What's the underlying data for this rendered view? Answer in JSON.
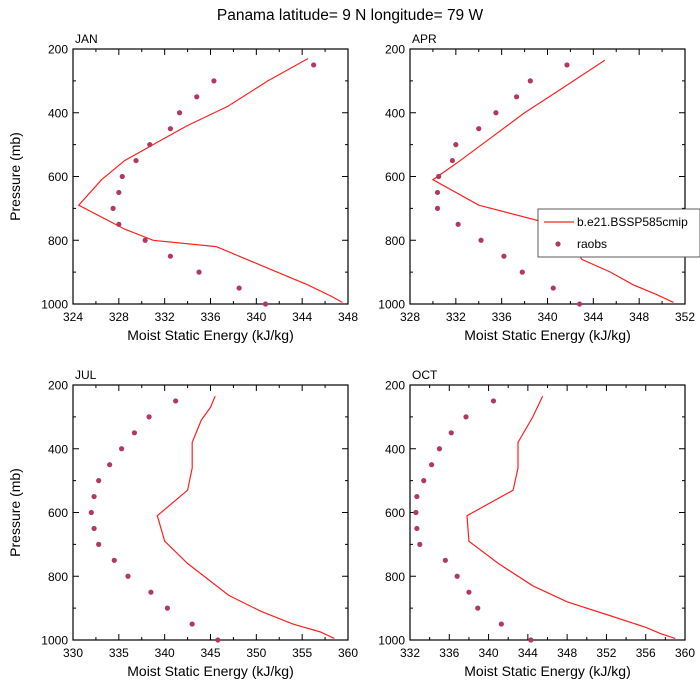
{
  "page": {
    "title": "Panama  latitude= 9 N longitude= 79 W"
  },
  "colors": {
    "model_line": "#ff2020",
    "obs_marker": "#b03a5b",
    "axis": "#000000"
  },
  "legend": {
    "model_label": "b.e21.BSSP585cmip",
    "obs_label": "raobs",
    "placement": "inside APR panel, right edge, near 700-860 mb"
  },
  "chart_data": [
    {
      "type": "line",
      "panel": "JAN",
      "title": "JAN",
      "xlabel": "Moist Static Energy (kJ/kg)",
      "ylabel": "Pressure (mb)",
      "xlim": [
        324,
        348
      ],
      "xticks": [
        324,
        328,
        332,
        336,
        340,
        344,
        348
      ],
      "ylim": [
        200,
        1000
      ],
      "yticks": [
        200,
        400,
        600,
        800,
        1000
      ],
      "y_inverted": true,
      "series": [
        {
          "name": "b.e21.BSSP585cmip",
          "kind": "line",
          "x": [
            347.5,
            346.5,
            344.5,
            340.5,
            336.5,
            331.0,
            328.5,
            324.5,
            326.5,
            328.5,
            331.5,
            334.0,
            337.5,
            341.0,
            344.5
          ],
          "y": [
            995,
            975,
            940,
            880,
            820,
            800,
            765,
            690,
            610,
            550,
            490,
            440,
            380,
            300,
            230
          ]
        },
        {
          "name": "raobs",
          "kind": "scatter",
          "x": [
            340.8,
            338.5,
            335.0,
            332.5,
            330.3,
            328.0,
            327.5,
            328.0,
            328.3,
            329.5,
            330.7,
            332.5,
            333.3,
            334.8,
            336.3,
            345.0
          ],
          "y": [
            1000,
            950,
            900,
            850,
            800,
            750,
            700,
            650,
            600,
            550,
            500,
            450,
            400,
            350,
            300,
            250
          ]
        }
      ]
    },
    {
      "type": "line",
      "panel": "APR",
      "title": "APR",
      "xlabel": "Moist Static Energy (kJ/kg)",
      "ylabel": "",
      "xlim": [
        328,
        352
      ],
      "xticks": [
        328,
        332,
        336,
        340,
        344,
        348,
        352
      ],
      "ylim": [
        200,
        1000
      ],
      "yticks": [
        200,
        400,
        600,
        800,
        1000
      ],
      "y_inverted": true,
      "series": [
        {
          "name": "b.e21.BSSP585cmip",
          "kind": "line",
          "x": [
            351.0,
            349.5,
            347.5,
            345.5,
            343.0,
            342.0,
            341.5,
            334.0,
            330.0,
            332.0,
            335.0,
            338.0,
            341.0,
            345.0
          ],
          "y": [
            995,
            970,
            940,
            900,
            860,
            800,
            760,
            690,
            610,
            560,
            480,
            400,
            330,
            235
          ]
        },
        {
          "name": "raobs",
          "kind": "scatter",
          "x": [
            342.8,
            340.5,
            337.8,
            336.2,
            334.2,
            332.2,
            330.4,
            330.4,
            330.5,
            331.7,
            332.0,
            334.0,
            335.5,
            337.3,
            338.5,
            341.7
          ],
          "y": [
            1000,
            950,
            900,
            850,
            800,
            750,
            700,
            650,
            600,
            550,
            500,
            450,
            400,
            350,
            300,
            250
          ]
        }
      ]
    },
    {
      "type": "line",
      "panel": "JUL",
      "title": "JUL",
      "xlabel": "Moist Static Energy (kJ/kg)",
      "ylabel": "Pressure (mb)",
      "xlim": [
        330,
        360
      ],
      "xticks": [
        330,
        335,
        340,
        345,
        350,
        355,
        360
      ],
      "ylim": [
        200,
        1000
      ],
      "yticks": [
        200,
        400,
        600,
        800,
        1000
      ],
      "y_inverted": true,
      "series": [
        {
          "name": "b.e21.BSSP585cmip",
          "kind": "line",
          "x": [
            358.5,
            357.0,
            354.0,
            350.5,
            347.0,
            342.5,
            340.0,
            339.2,
            342.5,
            343.0,
            343.0,
            344.0,
            345.0,
            345.5
          ],
          "y": [
            995,
            975,
            950,
            910,
            860,
            760,
            690,
            610,
            530,
            460,
            380,
            310,
            270,
            235
          ]
        },
        {
          "name": "raobs",
          "kind": "scatter",
          "x": [
            345.8,
            343.0,
            340.3,
            338.5,
            336.0,
            334.5,
            332.8,
            332.3,
            332.0,
            332.3,
            332.8,
            334.0,
            335.3,
            336.7,
            338.3,
            341.2
          ],
          "y": [
            1000,
            950,
            900,
            850,
            800,
            750,
            700,
            650,
            600,
            550,
            500,
            450,
            400,
            350,
            300,
            250
          ]
        }
      ]
    },
    {
      "type": "line",
      "panel": "OCT",
      "title": "OCT",
      "xlabel": "Moist Static Energy (kJ/kg)",
      "ylabel": "",
      "xlim": [
        332,
        360
      ],
      "xticks": [
        332,
        336,
        340,
        344,
        348,
        352,
        356,
        360
      ],
      "ylim": [
        200,
        1000
      ],
      "yticks": [
        200,
        400,
        600,
        800,
        1000
      ],
      "y_inverted": true,
      "series": [
        {
          "name": "b.e21.BSSP585cmip",
          "kind": "line",
          "x": [
            359.0,
            357.5,
            356.0,
            352.0,
            348.0,
            344.5,
            341.0,
            338.0,
            337.8,
            342.5,
            343.0,
            343.0,
            344.5,
            345.5
          ],
          "y": [
            995,
            980,
            960,
            920,
            880,
            830,
            760,
            690,
            610,
            530,
            460,
            380,
            300,
            235
          ]
        },
        {
          "name": "raobs",
          "kind": "scatter",
          "x": [
            344.3,
            341.3,
            338.9,
            338.0,
            336.8,
            335.6,
            333.0,
            332.7,
            332.6,
            332.7,
            333.4,
            334.2,
            335.0,
            336.2,
            337.7,
            340.5
          ],
          "y": [
            1000,
            950,
            900,
            850,
            800,
            750,
            700,
            650,
            600,
            550,
            500,
            450,
            400,
            350,
            300,
            250
          ]
        }
      ]
    }
  ]
}
